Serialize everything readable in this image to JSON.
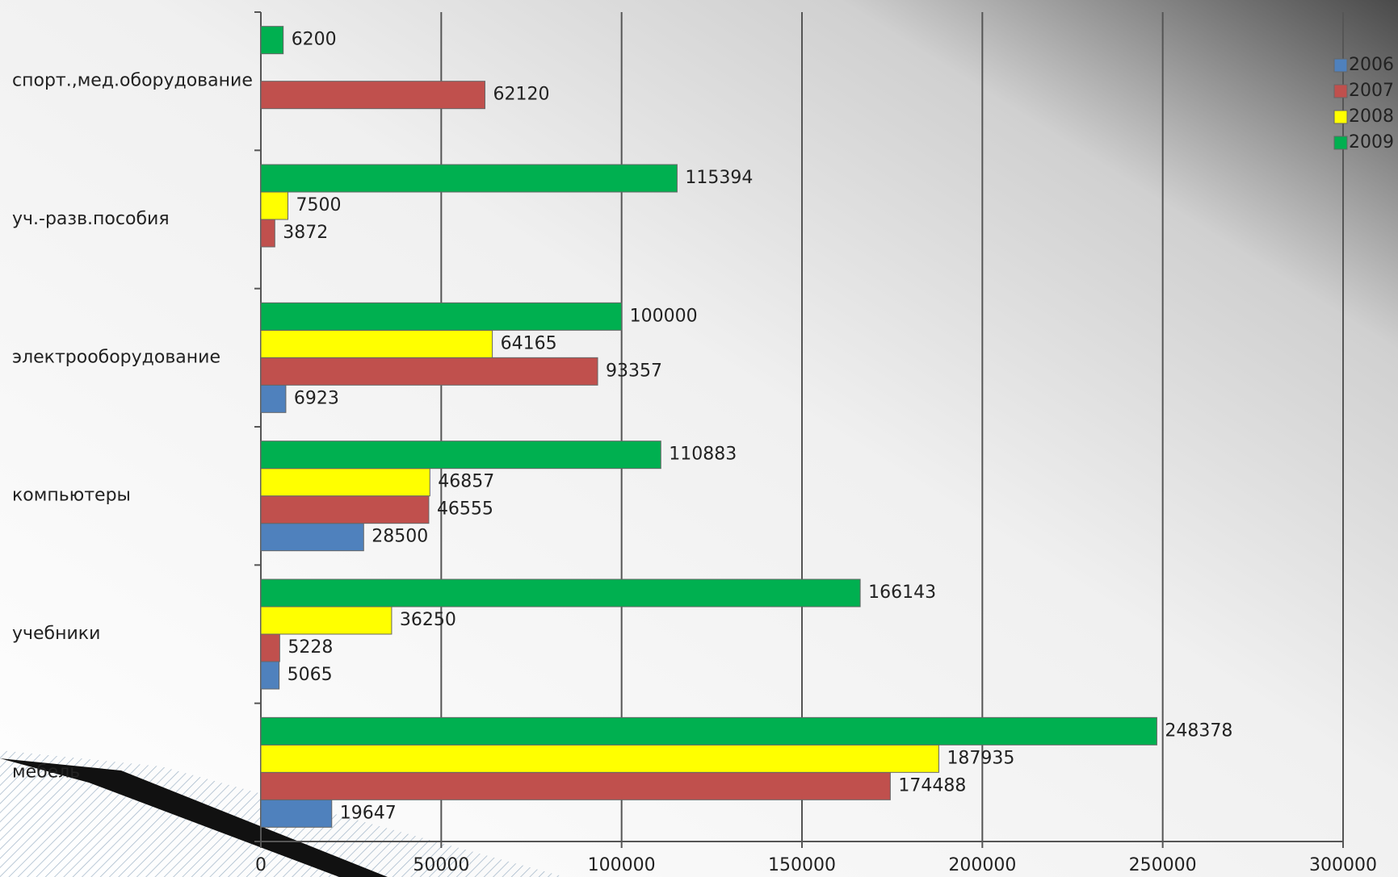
{
  "chart_data": {
    "type": "bar",
    "orientation": "horizontal",
    "categories": [
      "мебель",
      "учебники",
      "компьютеры",
      "электрооборудование",
      "уч.-разв.пособия",
      "спорт.,мед.оборудование"
    ],
    "series": [
      {
        "name": "2006",
        "color": "#4f81bd",
        "values": [
          19647,
          5065,
          28500,
          6923,
          null,
          null
        ]
      },
      {
        "name": "2007",
        "color": "#c0504d",
        "values": [
          174488,
          5228,
          46555,
          93357,
          3872,
          62120
        ]
      },
      {
        "name": "2008",
        "color": "#ffff00",
        "values": [
          187935,
          36250,
          46857,
          64165,
          7500,
          null
        ]
      },
      {
        "name": "2009",
        "color": "#00b050",
        "values": [
          248378,
          166143,
          110883,
          100000,
          115394,
          6200
        ]
      }
    ],
    "xlim": [
      0,
      300000
    ],
    "xticks": [
      0,
      50000,
      100000,
      150000,
      200000,
      250000,
      300000
    ],
    "grid": true,
    "legend": "top-right"
  }
}
